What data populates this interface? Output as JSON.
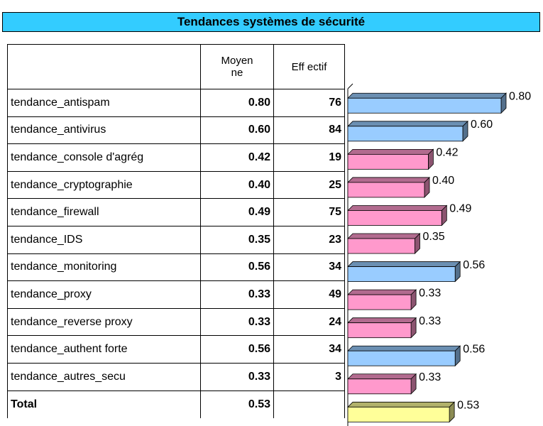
{
  "title": "Tendances systèmes de sécurité",
  "table": {
    "headers": [
      "Moyenne",
      "Eff ectif"
    ],
    "rows": [
      {
        "name": "tendance_antispam",
        "mean": 0.8,
        "mean_label": "0.80",
        "count": 76,
        "color": "#99ccff"
      },
      {
        "name": "tendance_antivirus",
        "mean": 0.6,
        "mean_label": "0.60",
        "count": 84,
        "color": "#99ccff"
      },
      {
        "name": "tendance_console d'agrég",
        "mean": 0.42,
        "mean_label": "0.42",
        "count": 19,
        "color": "#ff99cc"
      },
      {
        "name": "tendance_cryptographie",
        "mean": 0.4,
        "mean_label": "0.40",
        "count": 25,
        "color": "#ff99cc"
      },
      {
        "name": "tendance_firewall",
        "mean": 0.49,
        "mean_label": "0.49",
        "count": 75,
        "color": "#ff99cc"
      },
      {
        "name": "tendance_IDS",
        "mean": 0.35,
        "mean_label": "0.35",
        "count": 23,
        "color": "#ff99cc"
      },
      {
        "name": "tendance_monitoring",
        "mean": 0.56,
        "mean_label": "0.56",
        "count": 34,
        "color": "#99ccff"
      },
      {
        "name": "tendance_proxy",
        "mean": 0.33,
        "mean_label": "0.33",
        "count": 49,
        "color": "#ff99cc"
      },
      {
        "name": "tendance_reverse proxy",
        "mean": 0.33,
        "mean_label": "0.33",
        "count": 24,
        "color": "#ff99cc"
      },
      {
        "name": "tendance_authent forte",
        "mean": 0.56,
        "mean_label": "0.56",
        "count": 34,
        "color": "#99ccff"
      },
      {
        "name": "tendance_autres_secu",
        "mean": 0.33,
        "mean_label": "0.33",
        "count": 3,
        "color": "#ff99cc"
      }
    ],
    "total": {
      "name": "Total",
      "mean": 0.53,
      "mean_label": "0.53",
      "color": "#ffff99"
    }
  }
}
